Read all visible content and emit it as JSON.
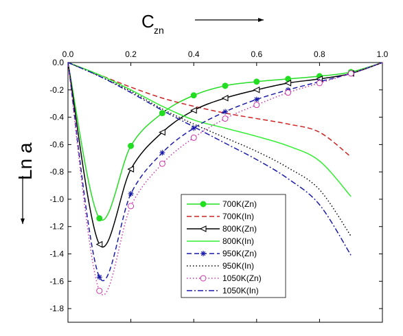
{
  "chart_data": {
    "type": "line",
    "xlabel": "C",
    "xlabel_sub": "zn",
    "ylabel": "Ln a",
    "xlim": [
      0.0,
      1.0
    ],
    "ylim": [
      -1.9,
      0.0
    ],
    "xticks": [
      "0.0",
      "0.2",
      "0.4",
      "0.6",
      "0.8",
      "1.0"
    ],
    "yticks": [
      "0.0",
      "-0.2",
      "-0.4",
      "-0.6",
      "-0.8",
      "-1.0",
      "-1.2",
      "-1.4",
      "-1.6",
      "-1.8"
    ],
    "ytick_values": [
      0.0,
      -0.2,
      -0.4,
      -0.6,
      -0.8,
      -1.0,
      -1.2,
      -1.4,
      -1.6,
      -1.8
    ],
    "xtick_values": [
      0.0,
      0.2,
      0.4,
      0.6,
      0.8,
      1.0
    ],
    "grid": false,
    "legend_position": "bottom-center",
    "series": [
      {
        "name": "700K(Zn)",
        "color": "#22dd22",
        "dash": "solid",
        "marker": "filled-circle",
        "x": [
          0.0,
          0.1,
          0.2,
          0.3,
          0.4,
          0.5,
          0.6,
          0.7,
          0.8,
          0.9,
          1.0
        ],
        "y": [
          0.0,
          -1.14,
          -0.61,
          -0.37,
          -0.24,
          -0.17,
          -0.14,
          -0.12,
          -0.1,
          -0.07,
          0.0
        ],
        "marker_x": [
          0.1,
          0.2,
          0.3,
          0.4,
          0.5,
          0.6,
          0.7,
          0.8,
          0.9
        ]
      },
      {
        "name": "700K(In)",
        "color": "#cc2222",
        "dash": "dashed",
        "marker": "none",
        "x": [
          0.0,
          0.1,
          0.2,
          0.3,
          0.4,
          0.5,
          0.6,
          0.7,
          0.8,
          0.9
        ],
        "y": [
          0.0,
          -0.09,
          -0.18,
          -0.26,
          -0.32,
          -0.37,
          -0.41,
          -0.45,
          -0.51,
          -0.69
        ]
      },
      {
        "name": "800K(Zn)",
        "color": "#000000",
        "dash": "solid",
        "marker": "open-triangle-left",
        "x": [
          0.0,
          0.1,
          0.2,
          0.3,
          0.4,
          0.5,
          0.6,
          0.7,
          0.8,
          0.9,
          1.0
        ],
        "y": [
          0.0,
          -1.33,
          -0.78,
          -0.51,
          -0.35,
          -0.26,
          -0.2,
          -0.15,
          -0.12,
          -0.08,
          0.0
        ],
        "marker_x": [
          0.1,
          0.2,
          0.3,
          0.4,
          0.5,
          0.6,
          0.7,
          0.8,
          0.9
        ]
      },
      {
        "name": "800K(In)",
        "color": "#33ee33",
        "dash": "solid",
        "marker": "none",
        "x": [
          0.0,
          0.1,
          0.2,
          0.3,
          0.4,
          0.5,
          0.6,
          0.7,
          0.8,
          0.9
        ],
        "y": [
          0.0,
          -0.09,
          -0.2,
          -0.32,
          -0.42,
          -0.48,
          -0.54,
          -0.61,
          -0.72,
          -0.98
        ]
      },
      {
        "name": "950K(Zn)",
        "color": "#1a1aaa",
        "dash": "dashed",
        "marker": "asterisk",
        "x": [
          0.0,
          0.1,
          0.2,
          0.3,
          0.4,
          0.5,
          0.6,
          0.7,
          0.8,
          0.9,
          1.0
        ],
        "y": [
          0.0,
          -1.57,
          -0.96,
          -0.66,
          -0.48,
          -0.36,
          -0.27,
          -0.2,
          -0.14,
          -0.08,
          0.0
        ],
        "marker_x": [
          0.1,
          0.2,
          0.3,
          0.4,
          0.5,
          0.6,
          0.7,
          0.8,
          0.9
        ]
      },
      {
        "name": "950K(In)",
        "color": "#000000",
        "dash": "dotted",
        "marker": "none",
        "x": [
          0.0,
          0.1,
          0.2,
          0.3,
          0.4,
          0.5,
          0.6,
          0.7,
          0.8,
          0.9
        ],
        "y": [
          0.0,
          -0.1,
          -0.21,
          -0.34,
          -0.45,
          -0.55,
          -0.65,
          -0.77,
          -0.93,
          -1.27
        ]
      },
      {
        "name": "1050K(Zn)",
        "color": "#cc33aa",
        "dash": "dotted",
        "marker": "open-circle",
        "x": [
          0.0,
          0.1,
          0.2,
          0.3,
          0.4,
          0.5,
          0.6,
          0.7,
          0.8,
          0.9,
          1.0
        ],
        "y": [
          0.0,
          -1.67,
          -1.05,
          -0.74,
          -0.55,
          -0.41,
          -0.31,
          -0.22,
          -0.15,
          -0.08,
          0.0
        ],
        "marker_x": [
          0.1,
          0.2,
          0.3,
          0.4,
          0.5,
          0.6,
          0.7,
          0.8,
          0.9
        ]
      },
      {
        "name": "1050K(In)",
        "color": "#1a1aaa",
        "dash": "dashdot",
        "marker": "none",
        "x": [
          0.0,
          0.1,
          0.2,
          0.3,
          0.4,
          0.5,
          0.6,
          0.7,
          0.8,
          0.9
        ],
        "y": [
          0.0,
          -0.1,
          -0.22,
          -0.35,
          -0.47,
          -0.59,
          -0.71,
          -0.85,
          -1.04,
          -1.41
        ]
      }
    ]
  }
}
